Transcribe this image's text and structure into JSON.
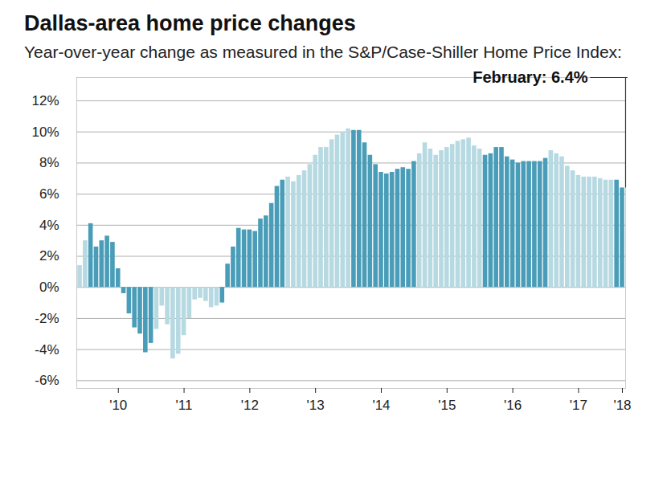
{
  "chart_data": {
    "type": "bar",
    "title": "Dallas-area home price changes",
    "subtitle": "Year-over-year change as measured in the S&P/Case-Shiller Home Price Index:",
    "annotations": [
      {
        "text": "February: 6.4%"
      }
    ],
    "categories": [
      null,
      null,
      null,
      null,
      null,
      null,
      null,
      "'10",
      null,
      null,
      null,
      null,
      null,
      null,
      null,
      null,
      null,
      null,
      null,
      "'11",
      null,
      null,
      null,
      null,
      null,
      null,
      null,
      null,
      null,
      null,
      null,
      "'12",
      null,
      null,
      null,
      null,
      null,
      null,
      null,
      null,
      null,
      null,
      null,
      "'13",
      null,
      null,
      null,
      null,
      null,
      null,
      null,
      null,
      null,
      null,
      null,
      "'14",
      null,
      null,
      null,
      null,
      null,
      null,
      null,
      null,
      null,
      null,
      null,
      "'15",
      null,
      null,
      null,
      null,
      null,
      null,
      null,
      null,
      null,
      null,
      null,
      "'16",
      null,
      null,
      null,
      null,
      null,
      null,
      null,
      null,
      null,
      null,
      null,
      "'17",
      null,
      null,
      null,
      null,
      null,
      null,
      null,
      "'18"
    ],
    "values": [
      1.4,
      3.0,
      4.1,
      2.6,
      3.0,
      3.3,
      2.9,
      1.2,
      -0.4,
      -1.7,
      -2.6,
      -3.0,
      -4.2,
      -3.6,
      -2.7,
      -1.2,
      -2.4,
      -4.6,
      -4.3,
      -3.1,
      -2.0,
      -0.8,
      -0.7,
      -0.9,
      -1.3,
      -1.2,
      -1.0,
      1.5,
      2.6,
      3.8,
      3.7,
      3.7,
      3.6,
      4.4,
      4.6,
      5.4,
      6.5,
      6.9,
      7.1,
      6.8,
      7.2,
      7.5,
      7.9,
      8.5,
      9.0,
      9.0,
      9.5,
      9.8,
      10.0,
      10.2,
      10.1,
      10.1,
      9.3,
      8.5,
      7.9,
      7.4,
      7.3,
      7.4,
      7.6,
      7.7,
      7.6,
      8.1,
      8.6,
      9.3,
      8.9,
      8.5,
      8.8,
      9.0,
      9.2,
      9.4,
      9.5,
      9.6,
      9.1,
      8.9,
      8.5,
      8.6,
      9.0,
      9.0,
      8.4,
      8.2,
      8.0,
      8.1,
      8.1,
      8.1,
      8.1,
      8.3,
      8.8,
      8.6,
      8.4,
      7.8,
      7.5,
      7.2,
      7.1,
      7.1,
      7.1,
      7.0,
      6.9,
      6.9,
      6.9,
      6.4
    ],
    "colors": [
      "#b7d9e2",
      "#b7d9e2",
      "#4a9db8",
      "#4a9db8",
      "#4a9db8",
      "#4a9db8",
      "#4a9db8",
      "#4a9db8",
      "#4a9db8",
      "#4a9db8",
      "#4a9db8",
      "#4a9db8",
      "#4a9db8",
      "#4a9db8",
      "#b7d9e2",
      "#b7d9e2",
      "#b7d9e2",
      "#b7d9e2",
      "#b7d9e2",
      "#b7d9e2",
      "#b7d9e2",
      "#b7d9e2",
      "#b7d9e2",
      "#b7d9e2",
      "#b7d9e2",
      "#b7d9e2",
      "#4a9db8",
      "#4a9db8",
      "#4a9db8",
      "#4a9db8",
      "#4a9db8",
      "#4a9db8",
      "#4a9db8",
      "#4a9db8",
      "#4a9db8",
      "#4a9db8",
      "#4a9db8",
      "#4a9db8",
      "#b7d9e2",
      "#b7d9e2",
      "#b7d9e2",
      "#b7d9e2",
      "#b7d9e2",
      "#b7d9e2",
      "#b7d9e2",
      "#b7d9e2",
      "#b7d9e2",
      "#b7d9e2",
      "#b7d9e2",
      "#b7d9e2",
      "#4a9db8",
      "#4a9db8",
      "#4a9db8",
      "#4a9db8",
      "#4a9db8",
      "#4a9db8",
      "#4a9db8",
      "#4a9db8",
      "#4a9db8",
      "#4a9db8",
      "#4a9db8",
      "#4a9db8",
      "#b7d9e2",
      "#b7d9e2",
      "#b7d9e2",
      "#b7d9e2",
      "#b7d9e2",
      "#b7d9e2",
      "#b7d9e2",
      "#b7d9e2",
      "#b7d9e2",
      "#b7d9e2",
      "#b7d9e2",
      "#b7d9e2",
      "#4a9db8",
      "#4a9db8",
      "#4a9db8",
      "#4a9db8",
      "#4a9db8",
      "#4a9db8",
      "#4a9db8",
      "#4a9db8",
      "#4a9db8",
      "#4a9db8",
      "#4a9db8",
      "#4a9db8",
      "#b7d9e2",
      "#b7d9e2",
      "#b7d9e2",
      "#b7d9e2",
      "#b7d9e2",
      "#b7d9e2",
      "#b7d9e2",
      "#b7d9e2",
      "#b7d9e2",
      "#b7d9e2",
      "#b7d9e2",
      "#b7d9e2",
      "#4a9db8",
      "#4a9db8"
    ],
    "ylim": [
      -6.5,
      13.5
    ],
    "yticks": [
      {
        "value": -6,
        "label": "-6%"
      },
      {
        "value": -4,
        "label": "-4%"
      },
      {
        "value": -2,
        "label": "-2%"
      },
      {
        "value": 0,
        "label": "0%"
      },
      {
        "value": 2,
        "label": "2%"
      },
      {
        "value": 4,
        "label": "4%"
      },
      {
        "value": 6,
        "label": "6%"
      },
      {
        "value": 8,
        "label": "8%"
      },
      {
        "value": 10,
        "label": "10%"
      },
      {
        "value": 12,
        "label": "12%"
      }
    ],
    "grid": true
  }
}
